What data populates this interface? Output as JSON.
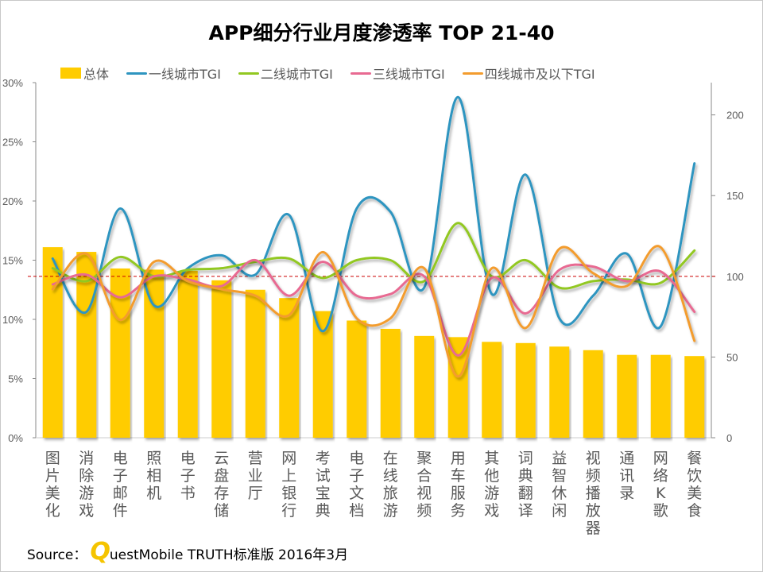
{
  "chart_data": {
    "type": "bar+line",
    "title": "APP细分行业月度渗透率 TOP 21-40",
    "categories": [
      "图片美化",
      "消除游戏",
      "电子邮件",
      "照相机",
      "电子书",
      "云盘存储",
      "营业厅",
      "网上银行",
      "考试宝典",
      "电子文档",
      "在线旅游",
      "聚合视频",
      "用车服务",
      "其他游戏",
      "词典翻译",
      "益智休闲",
      "视频播放器",
      "通讯录",
      "网络K歌",
      "餐饮美食"
    ],
    "left_axis": {
      "min": 0,
      "max": 30,
      "ticks": [
        "0%",
        "5%",
        "10%",
        "15%",
        "20%",
        "25%",
        "30%"
      ]
    },
    "right_axis": {
      "min": 0,
      "max": 220,
      "ticks": [
        "0",
        "50",
        "100",
        "150",
        "200"
      ]
    },
    "reference_line": {
      "value": 100,
      "axis": "right",
      "color": "#CC0000"
    },
    "legend_position": "top",
    "series": [
      {
        "name": "总体",
        "type": "bar",
        "axis": "left",
        "color": "#FFCC00",
        "values": [
          16.1,
          15.7,
          14.3,
          14.2,
          14.1,
          13.3,
          12.5,
          11.8,
          10.7,
          9.9,
          9.2,
          8.6,
          8.5,
          8.1,
          8.0,
          7.7,
          7.4,
          7.0,
          7.0,
          6.9
        ]
      },
      {
        "name": "一线城市TGI",
        "type": "line",
        "axis": "right",
        "color": "#2E95C0",
        "values": [
          111,
          78,
          142,
          82,
          105,
          113,
          101,
          138,
          66,
          142,
          140,
          93,
          211,
          89,
          163,
          74,
          88,
          114,
          69,
          170
        ]
      },
      {
        "name": "二线城市TGI",
        "type": "line",
        "axis": "right",
        "color": "#92C821",
        "values": [
          105,
          97,
          112,
          100,
          104,
          105,
          109,
          111,
          99,
          110,
          110,
          97,
          133,
          100,
          110,
          93,
          97,
          98,
          96,
          116
        ]
      },
      {
        "name": "三线城市TGI",
        "type": "line",
        "axis": "right",
        "color": "#E86A92",
        "values": [
          95,
          101,
          87,
          100,
          98,
          94,
          110,
          88,
          109,
          88,
          89,
          100,
          51,
          99,
          77,
          104,
          106,
          97,
          103,
          78
        ]
      },
      {
        "name": "四线城市及以下TGI",
        "type": "line",
        "axis": "right",
        "color": "#F39C2E",
        "values": [
          92,
          114,
          73,
          109,
          97,
          92,
          88,
          76,
          115,
          74,
          74,
          105,
          38,
          105,
          68,
          117,
          102,
          94,
          118,
          60
        ]
      }
    ]
  },
  "source": {
    "label": "Source：",
    "logo_letter": "Q",
    "text": "uestMobile TRUTH标准版 2016年3月"
  }
}
